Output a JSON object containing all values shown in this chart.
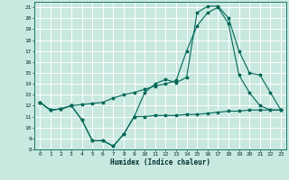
{
  "xlabel": "Humidex (Indice chaleur)",
  "background_color": "#c8e8e0",
  "grid_color": "#ffffff",
  "line_color": "#006858",
  "xlim_min": -0.5,
  "xlim_max": 23.5,
  "ylim_min": 8,
  "ylim_max": 21.5,
  "xticks": [
    0,
    1,
    2,
    3,
    4,
    5,
    6,
    7,
    8,
    9,
    10,
    11,
    12,
    13,
    14,
    15,
    16,
    17,
    18,
    19,
    20,
    21,
    22,
    23
  ],
  "yticks": [
    8,
    9,
    10,
    11,
    12,
    13,
    14,
    15,
    16,
    17,
    18,
    19,
    20,
    21
  ],
  "line1_x": [
    0,
    1,
    2,
    3,
    4,
    5,
    6,
    7,
    8,
    9,
    10,
    11,
    12,
    13,
    14,
    15,
    16,
    17,
    18,
    19,
    20,
    21,
    22,
    23
  ],
  "line1_y": [
    12.3,
    11.6,
    11.7,
    12.0,
    10.7,
    8.8,
    8.8,
    8.3,
    9.4,
    11.0,
    11.0,
    11.1,
    11.1,
    11.1,
    11.2,
    11.2,
    11.3,
    11.4,
    11.5,
    11.5,
    11.6,
    11.6,
    11.6,
    11.6
  ],
  "line2_x": [
    0,
    1,
    2,
    3,
    4,
    5,
    6,
    7,
    8,
    9,
    10,
    11,
    12,
    13,
    14,
    15,
    16,
    17,
    18,
    19,
    20,
    21,
    22,
    23
  ],
  "line2_y": [
    12.3,
    11.6,
    11.7,
    12.0,
    12.1,
    12.2,
    12.3,
    12.7,
    13.0,
    13.2,
    13.5,
    13.8,
    14.0,
    14.3,
    17.0,
    19.3,
    20.5,
    21.0,
    19.5,
    14.8,
    13.2,
    12.0,
    11.6,
    11.6
  ],
  "line3_x": [
    0,
    1,
    2,
    3,
    4,
    5,
    6,
    7,
    8,
    9,
    10,
    11,
    12,
    13,
    14,
    15,
    16,
    17,
    18,
    19,
    20,
    21,
    22,
    23
  ],
  "line3_y": [
    12.3,
    11.6,
    11.7,
    12.0,
    10.7,
    8.8,
    8.8,
    8.3,
    9.4,
    11.0,
    13.2,
    14.0,
    14.4,
    14.1,
    14.6,
    20.5,
    21.1,
    21.1,
    20.0,
    17.0,
    15.0,
    14.8,
    13.2,
    11.6
  ]
}
